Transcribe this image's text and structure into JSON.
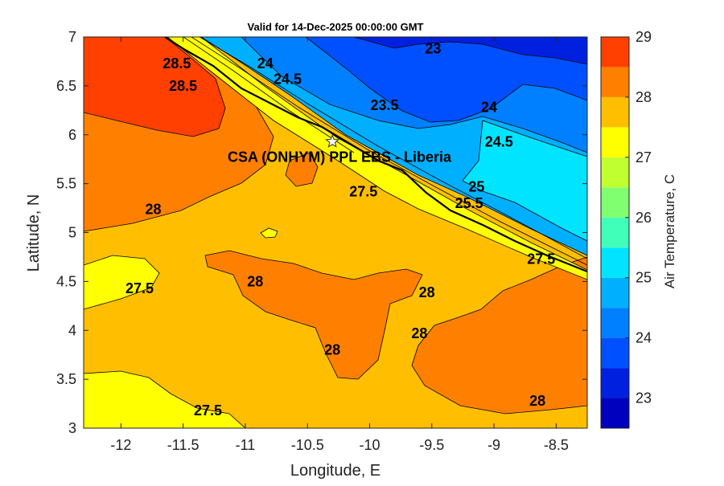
{
  "map": {
    "title": "Valid for 14-Dec-2025 00:00:00 GMT",
    "xlabel": "Longitude, E",
    "ylabel": "Latitude, N",
    "station_label": "CSA (ONHYM) PPL EBS  - Liberia",
    "station_lon": -10.3,
    "station_lat": 5.93,
    "xlim": [
      -12.3,
      -8.25
    ],
    "ylim": [
      3,
      7
    ],
    "x_ticks": [
      "-12",
      "-11.5",
      "-11",
      "-10.5",
      "-10",
      "-9.5",
      "-9",
      "-8.5"
    ],
    "y_ticks": [
      "3",
      "3.5",
      "4",
      "4.5",
      "5",
      "5.5",
      "6",
      "6.5",
      "7"
    ],
    "colorbar": {
      "label": "Air Temperature, C",
      "range": [
        22.5,
        29
      ],
      "ticks": [
        "23",
        "24",
        "25",
        "26",
        "27",
        "28",
        "29"
      ],
      "colors": [
        "#0000bf",
        "#0020e0",
        "#0050ff",
        "#0080ff",
        "#00b0ff",
        "#00e4ff",
        "#40ffb8",
        "#80ff70",
        "#c0ff30",
        "#ffff00",
        "#ffbf00",
        "#ff8000",
        "#ff4000"
      ]
    },
    "contour_labels": [
      {
        "text": "23",
        "lon": -9.49,
        "lat": 6.88
      },
      {
        "text": "24",
        "lon": -10.84,
        "lat": 6.73
      },
      {
        "text": "24.5",
        "lon": -10.66,
        "lat": 6.57
      },
      {
        "text": "23.5",
        "lon": -9.88,
        "lat": 6.3
      },
      {
        "text": "24",
        "lon": -9.04,
        "lat": 6.28
      },
      {
        "text": "24.5",
        "lon": -8.96,
        "lat": 5.93
      },
      {
        "text": "28.5",
        "lon": -11.55,
        "lat": 6.73
      },
      {
        "text": "28.5",
        "lon": -11.5,
        "lat": 6.5
      },
      {
        "text": "28",
        "lon": -11.74,
        "lat": 5.24
      },
      {
        "text": "27.5",
        "lon": -11.85,
        "lat": 4.43
      },
      {
        "text": "28",
        "lon": -10.92,
        "lat": 4.5
      },
      {
        "text": "27.5",
        "lon": -10.05,
        "lat": 5.42
      },
      {
        "text": "28",
        "lon": -9.54,
        "lat": 4.39
      },
      {
        "text": "28",
        "lon": -9.6,
        "lat": 3.97
      },
      {
        "text": "28",
        "lon": -10.3,
        "lat": 3.8
      },
      {
        "text": "27.5",
        "lon": -11.3,
        "lat": 3.18
      },
      {
        "text": "28",
        "lon": -8.65,
        "lat": 3.28
      },
      {
        "text": "27.5",
        "lon": -8.62,
        "lat": 4.73
      },
      {
        "text": "25",
        "lon": -9.14,
        "lat": 5.47
      },
      {
        "text": "25.5",
        "lon": -9.2,
        "lat": 5.3
      }
    ]
  }
}
